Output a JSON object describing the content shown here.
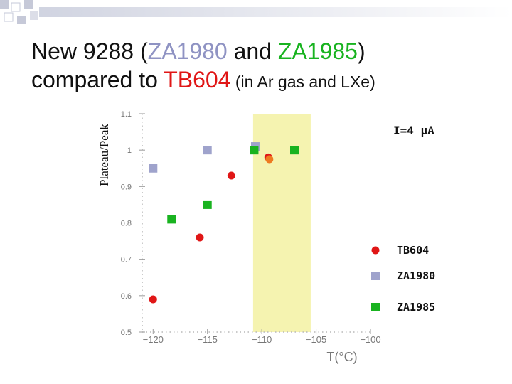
{
  "title": {
    "line1": {
      "t1": "New 9288 (",
      "t2": "ZA1980",
      "t3": " and ",
      "t4": "ZA1985",
      "t5": ")"
    },
    "line2": {
      "t1": "compared to ",
      "t2": "TB604",
      "t3": " (in Ar gas and LXe)"
    }
  },
  "chart_data": {
    "type": "scatter",
    "xlabel": "T(°C)",
    "ylabel": "Plateau/Peak",
    "xlim": [
      -121,
      -100
    ],
    "ylim": [
      0.5,
      1.1
    ],
    "xticks": [
      -120,
      -115,
      -110,
      -105,
      -100
    ],
    "yticks": [
      0.5,
      0.6,
      0.7,
      0.8,
      0.9,
      1.0,
      1.1
    ],
    "xtick_labels": [
      "−120",
      "−115",
      "−110",
      "−105",
      "−100"
    ],
    "ytick_labels": [
      "0.5",
      "0.6",
      "0.7",
      "0.8",
      "0.9",
      "1",
      "1.1"
    ],
    "highlight_band": {
      "x": [
        -110.8,
        -105.5
      ],
      "color": "#f5f3b0"
    },
    "annotation": "I=4 μA",
    "legend_position": "bottom-right",
    "series": [
      {
        "name": "TB604",
        "marker": "circle",
        "color": "#e01616",
        "points": [
          [
            -120,
            0.59
          ],
          [
            -115.7,
            0.76
          ],
          [
            -112.8,
            0.93
          ],
          [
            -109.4,
            0.98
          ]
        ]
      },
      {
        "name": "ZA1980",
        "marker": "square",
        "color": "#9fa3cc",
        "points": [
          [
            -120,
            0.95
          ],
          [
            -115,
            1.0
          ],
          [
            -110.6,
            1.01
          ]
        ]
      },
      {
        "name": "ZA1985",
        "marker": "square",
        "color": "#19b320",
        "points": [
          [
            -118.3,
            0.81
          ],
          [
            -115,
            0.85
          ],
          [
            -110.7,
            1.0
          ],
          [
            -107,
            1.0
          ]
        ]
      }
    ],
    "overlay_marker": {
      "point": [
        -109.3,
        0.975
      ],
      "color": "#ee7a20"
    }
  }
}
